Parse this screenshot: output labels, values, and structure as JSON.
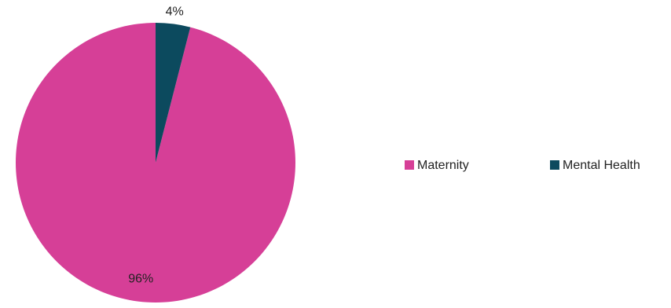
{
  "chart_data": {
    "type": "pie",
    "title": "",
    "slices": [
      {
        "label": "Maternity",
        "value": 96,
        "display": "96%",
        "color": "#D63F97"
      },
      {
        "label": "Mental Health",
        "value": 4,
        "display": "4%",
        "color": "#0C4A5E"
      }
    ],
    "legend": {
      "position": "right"
    }
  }
}
